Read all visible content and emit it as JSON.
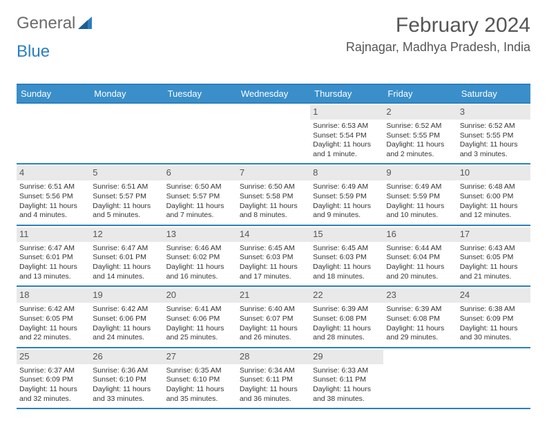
{
  "logo": {
    "text1": "General",
    "text2": "Blue"
  },
  "title": "February 2024",
  "location": "Rajnagar, Madhya Pradesh, India",
  "colors": {
    "accent": "#2a7fbf",
    "header_bg": "#3a8fca",
    "daynum_bg": "#e9e9e9",
    "text": "#333333",
    "muted": "#555555",
    "white": "#ffffff"
  },
  "dayHeaders": [
    "Sunday",
    "Monday",
    "Tuesday",
    "Wednesday",
    "Thursday",
    "Friday",
    "Saturday"
  ],
  "weeks": [
    [
      {
        "n": "",
        "sunrise": "",
        "sunset": "",
        "daylight": ""
      },
      {
        "n": "",
        "sunrise": "",
        "sunset": "",
        "daylight": ""
      },
      {
        "n": "",
        "sunrise": "",
        "sunset": "",
        "daylight": ""
      },
      {
        "n": "",
        "sunrise": "",
        "sunset": "",
        "daylight": ""
      },
      {
        "n": "1",
        "sunrise": "Sunrise: 6:53 AM",
        "sunset": "Sunset: 5:54 PM",
        "daylight": "Daylight: 11 hours and 1 minute."
      },
      {
        "n": "2",
        "sunrise": "Sunrise: 6:52 AM",
        "sunset": "Sunset: 5:55 PM",
        "daylight": "Daylight: 11 hours and 2 minutes."
      },
      {
        "n": "3",
        "sunrise": "Sunrise: 6:52 AM",
        "sunset": "Sunset: 5:55 PM",
        "daylight": "Daylight: 11 hours and 3 minutes."
      }
    ],
    [
      {
        "n": "4",
        "sunrise": "Sunrise: 6:51 AM",
        "sunset": "Sunset: 5:56 PM",
        "daylight": "Daylight: 11 hours and 4 minutes."
      },
      {
        "n": "5",
        "sunrise": "Sunrise: 6:51 AM",
        "sunset": "Sunset: 5:57 PM",
        "daylight": "Daylight: 11 hours and 5 minutes."
      },
      {
        "n": "6",
        "sunrise": "Sunrise: 6:50 AM",
        "sunset": "Sunset: 5:57 PM",
        "daylight": "Daylight: 11 hours and 7 minutes."
      },
      {
        "n": "7",
        "sunrise": "Sunrise: 6:50 AM",
        "sunset": "Sunset: 5:58 PM",
        "daylight": "Daylight: 11 hours and 8 minutes."
      },
      {
        "n": "8",
        "sunrise": "Sunrise: 6:49 AM",
        "sunset": "Sunset: 5:59 PM",
        "daylight": "Daylight: 11 hours and 9 minutes."
      },
      {
        "n": "9",
        "sunrise": "Sunrise: 6:49 AM",
        "sunset": "Sunset: 5:59 PM",
        "daylight": "Daylight: 11 hours and 10 minutes."
      },
      {
        "n": "10",
        "sunrise": "Sunrise: 6:48 AM",
        "sunset": "Sunset: 6:00 PM",
        "daylight": "Daylight: 11 hours and 12 minutes."
      }
    ],
    [
      {
        "n": "11",
        "sunrise": "Sunrise: 6:47 AM",
        "sunset": "Sunset: 6:01 PM",
        "daylight": "Daylight: 11 hours and 13 minutes."
      },
      {
        "n": "12",
        "sunrise": "Sunrise: 6:47 AM",
        "sunset": "Sunset: 6:01 PM",
        "daylight": "Daylight: 11 hours and 14 minutes."
      },
      {
        "n": "13",
        "sunrise": "Sunrise: 6:46 AM",
        "sunset": "Sunset: 6:02 PM",
        "daylight": "Daylight: 11 hours and 16 minutes."
      },
      {
        "n": "14",
        "sunrise": "Sunrise: 6:45 AM",
        "sunset": "Sunset: 6:03 PM",
        "daylight": "Daylight: 11 hours and 17 minutes."
      },
      {
        "n": "15",
        "sunrise": "Sunrise: 6:45 AM",
        "sunset": "Sunset: 6:03 PM",
        "daylight": "Daylight: 11 hours and 18 minutes."
      },
      {
        "n": "16",
        "sunrise": "Sunrise: 6:44 AM",
        "sunset": "Sunset: 6:04 PM",
        "daylight": "Daylight: 11 hours and 20 minutes."
      },
      {
        "n": "17",
        "sunrise": "Sunrise: 6:43 AM",
        "sunset": "Sunset: 6:05 PM",
        "daylight": "Daylight: 11 hours and 21 minutes."
      }
    ],
    [
      {
        "n": "18",
        "sunrise": "Sunrise: 6:42 AM",
        "sunset": "Sunset: 6:05 PM",
        "daylight": "Daylight: 11 hours and 22 minutes."
      },
      {
        "n": "19",
        "sunrise": "Sunrise: 6:42 AM",
        "sunset": "Sunset: 6:06 PM",
        "daylight": "Daylight: 11 hours and 24 minutes."
      },
      {
        "n": "20",
        "sunrise": "Sunrise: 6:41 AM",
        "sunset": "Sunset: 6:06 PM",
        "daylight": "Daylight: 11 hours and 25 minutes."
      },
      {
        "n": "21",
        "sunrise": "Sunrise: 6:40 AM",
        "sunset": "Sunset: 6:07 PM",
        "daylight": "Daylight: 11 hours and 26 minutes."
      },
      {
        "n": "22",
        "sunrise": "Sunrise: 6:39 AM",
        "sunset": "Sunset: 6:08 PM",
        "daylight": "Daylight: 11 hours and 28 minutes."
      },
      {
        "n": "23",
        "sunrise": "Sunrise: 6:39 AM",
        "sunset": "Sunset: 6:08 PM",
        "daylight": "Daylight: 11 hours and 29 minutes."
      },
      {
        "n": "24",
        "sunrise": "Sunrise: 6:38 AM",
        "sunset": "Sunset: 6:09 PM",
        "daylight": "Daylight: 11 hours and 30 minutes."
      }
    ],
    [
      {
        "n": "25",
        "sunrise": "Sunrise: 6:37 AM",
        "sunset": "Sunset: 6:09 PM",
        "daylight": "Daylight: 11 hours and 32 minutes."
      },
      {
        "n": "26",
        "sunrise": "Sunrise: 6:36 AM",
        "sunset": "Sunset: 6:10 PM",
        "daylight": "Daylight: 11 hours and 33 minutes."
      },
      {
        "n": "27",
        "sunrise": "Sunrise: 6:35 AM",
        "sunset": "Sunset: 6:10 PM",
        "daylight": "Daylight: 11 hours and 35 minutes."
      },
      {
        "n": "28",
        "sunrise": "Sunrise: 6:34 AM",
        "sunset": "Sunset: 6:11 PM",
        "daylight": "Daylight: 11 hours and 36 minutes."
      },
      {
        "n": "29",
        "sunrise": "Sunrise: 6:33 AM",
        "sunset": "Sunset: 6:11 PM",
        "daylight": "Daylight: 11 hours and 38 minutes."
      },
      {
        "n": "",
        "sunrise": "",
        "sunset": "",
        "daylight": ""
      },
      {
        "n": "",
        "sunrise": "",
        "sunset": "",
        "daylight": ""
      }
    ]
  ]
}
